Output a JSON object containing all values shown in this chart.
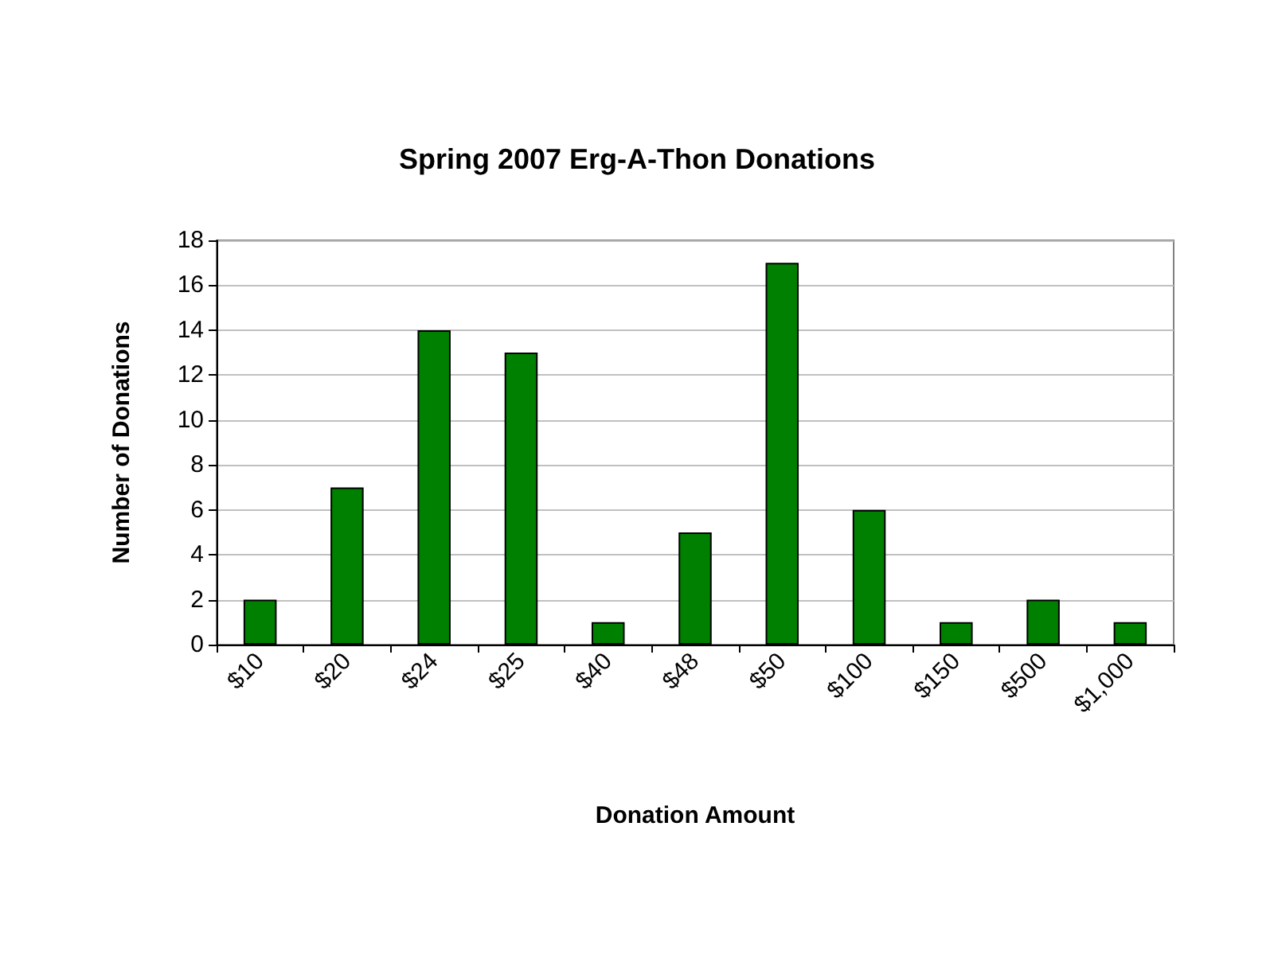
{
  "chart_data": {
    "type": "bar",
    "title": "Spring 2007 Erg-A-Thon Donations",
    "xlabel": "Donation Amount",
    "ylabel": "Number of Donations",
    "categories": [
      "$10",
      "$20",
      "$24",
      "$25",
      "$40",
      "$48",
      "$50",
      "$100",
      "$150",
      "$500",
      "$1,000"
    ],
    "values": [
      2,
      7,
      14,
      13,
      1,
      5,
      17,
      6,
      1,
      2,
      1
    ],
    "color": "#008000",
    "ylim": [
      0,
      18
    ],
    "yticks": [
      0,
      2,
      4,
      6,
      8,
      10,
      12,
      14,
      16,
      18
    ],
    "grid": "y"
  }
}
